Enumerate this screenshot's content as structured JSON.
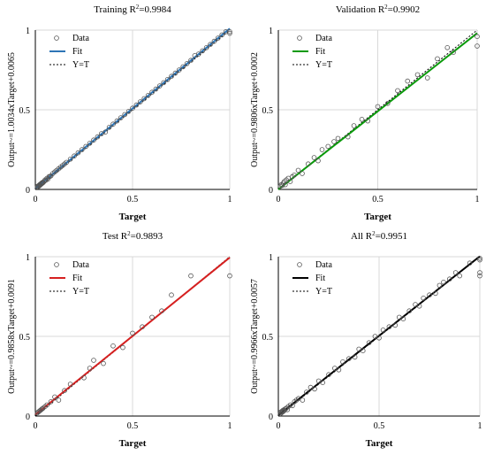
{
  "chart_data": [
    {
      "type": "scatter",
      "title": "Training R",
      "title_sup": "2",
      "title_value": "=0.9984",
      "xlabel": "Target",
      "ylabel": "Output~=1.0034xTarget+0.0065",
      "xlim": [
        0,
        1
      ],
      "ylim": [
        0,
        1
      ],
      "xticks": [
        "0",
        "0.5",
        "1"
      ],
      "yticks": [
        "0",
        "0.5",
        "1"
      ],
      "grid": true,
      "legend_position": "top-left",
      "fit_color": "#2e75b6",
      "fit": {
        "slope": 1.0034,
        "intercept": 0.0065
      },
      "series": [
        {
          "name": "Data",
          "points": [
            [
              0.01,
              0.015
            ],
            [
              0.012,
              0.02
            ],
            [
              0.015,
              0.018
            ],
            [
              0.018,
              0.025
            ],
            [
              0.02,
              0.022
            ],
            [
              0.022,
              0.03
            ],
            [
              0.025,
              0.028
            ],
            [
              0.028,
              0.035
            ],
            [
              0.03,
              0.033
            ],
            [
              0.032,
              0.04
            ],
            [
              0.035,
              0.038
            ],
            [
              0.038,
              0.045
            ],
            [
              0.04,
              0.043
            ],
            [
              0.045,
              0.05
            ],
            [
              0.05,
              0.06
            ],
            [
              0.055,
              0.058
            ],
            [
              0.06,
              0.07
            ],
            [
              0.065,
              0.066
            ],
            [
              0.07,
              0.08
            ],
            [
              0.075,
              0.082
            ],
            [
              0.08,
              0.085
            ],
            [
              0.09,
              0.1
            ],
            [
              0.1,
              0.11
            ],
            [
              0.11,
              0.12
            ],
            [
              0.12,
              0.13
            ],
            [
              0.13,
              0.14
            ],
            [
              0.14,
              0.15
            ],
            [
              0.15,
              0.16
            ],
            [
              0.16,
              0.17
            ],
            [
              0.18,
              0.19
            ],
            [
              0.2,
              0.21
            ],
            [
              0.22,
              0.23
            ],
            [
              0.24,
              0.25
            ],
            [
              0.26,
              0.27
            ],
            [
              0.28,
              0.29
            ],
            [
              0.3,
              0.31
            ],
            [
              0.32,
              0.33
            ],
            [
              0.34,
              0.35
            ],
            [
              0.36,
              0.36
            ],
            [
              0.38,
              0.39
            ],
            [
              0.4,
              0.41
            ],
            [
              0.42,
              0.43
            ],
            [
              0.44,
              0.45
            ],
            [
              0.46,
              0.47
            ],
            [
              0.48,
              0.49
            ],
            [
              0.5,
              0.51
            ],
            [
              0.52,
              0.53
            ],
            [
              0.54,
              0.55
            ],
            [
              0.56,
              0.57
            ],
            [
              0.58,
              0.59
            ],
            [
              0.6,
              0.61
            ],
            [
              0.62,
              0.63
            ],
            [
              0.64,
              0.65
            ],
            [
              0.66,
              0.67
            ],
            [
              0.68,
              0.69
            ],
            [
              0.7,
              0.71
            ],
            [
              0.72,
              0.73
            ],
            [
              0.74,
              0.75
            ],
            [
              0.76,
              0.77
            ],
            [
              0.78,
              0.79
            ],
            [
              0.8,
              0.81
            ],
            [
              0.82,
              0.84
            ],
            [
              0.84,
              0.85
            ],
            [
              0.86,
              0.87
            ],
            [
              0.88,
              0.89
            ],
            [
              0.9,
              0.91
            ],
            [
              0.92,
              0.93
            ],
            [
              0.94,
              0.95
            ],
            [
              0.96,
              0.97
            ],
            [
              0.98,
              0.99
            ],
            [
              1.0,
              0.98
            ],
            [
              1.0,
              0.99
            ]
          ]
        },
        {
          "name": "Fit"
        },
        {
          "name": "Y=T"
        }
      ]
    },
    {
      "type": "scatter",
      "title": "Validation R",
      "title_sup": "2",
      "title_value": "=0.9902",
      "xlabel": "Target",
      "ylabel": "Output~=0.9806xTarget+0.0002",
      "xlim": [
        0,
        1
      ],
      "ylim": [
        0,
        1
      ],
      "xticks": [
        "0",
        "0.5",
        "1"
      ],
      "yticks": [
        "0",
        "0.5",
        "1"
      ],
      "grid": true,
      "legend_position": "top-left",
      "fit_color": "#0a9a0a",
      "fit": {
        "slope": 0.9806,
        "intercept": 0.0002
      },
      "series": [
        {
          "name": "Data",
          "points": [
            [
              0.01,
              0.02
            ],
            [
              0.015,
              0.03
            ],
            [
              0.02,
              0.025
            ],
            [
              0.025,
              0.04
            ],
            [
              0.03,
              0.05
            ],
            [
              0.035,
              0.03
            ],
            [
              0.04,
              0.06
            ],
            [
              0.05,
              0.07
            ],
            [
              0.06,
              0.05
            ],
            [
              0.07,
              0.08
            ],
            [
              0.08,
              0.09
            ],
            [
              0.1,
              0.12
            ],
            [
              0.12,
              0.1
            ],
            [
              0.15,
              0.16
            ],
            [
              0.18,
              0.2
            ],
            [
              0.2,
              0.18
            ],
            [
              0.22,
              0.25
            ],
            [
              0.25,
              0.27
            ],
            [
              0.28,
              0.3
            ],
            [
              0.3,
              0.32
            ],
            [
              0.35,
              0.33
            ],
            [
              0.38,
              0.4
            ],
            [
              0.42,
              0.44
            ],
            [
              0.45,
              0.43
            ],
            [
              0.5,
              0.52
            ],
            [
              0.55,
              0.54
            ],
            [
              0.6,
              0.62
            ],
            [
              0.65,
              0.68
            ],
            [
              0.7,
              0.72
            ],
            [
              0.75,
              0.7
            ],
            [
              0.8,
              0.82
            ],
            [
              0.85,
              0.89
            ],
            [
              0.88,
              0.86
            ],
            [
              1.0,
              0.96
            ],
            [
              1.0,
              0.9
            ]
          ]
        },
        {
          "name": "Fit"
        },
        {
          "name": "Y=T"
        }
      ]
    },
    {
      "type": "scatter",
      "title": "Test R",
      "title_sup": "2",
      "title_value": "=0.9893",
      "xlabel": "Target",
      "ylabel": "Output~=0.9858xTarget+0.0091",
      "xlim": [
        0,
        1
      ],
      "ylim": [
        0,
        1
      ],
      "xticks": [
        "0",
        "0.5",
        "1"
      ],
      "yticks": [
        "0",
        "0.5",
        "1"
      ],
      "grid": true,
      "legend_position": "top-left",
      "fit_color": "#d62020",
      "fit": {
        "slope": 0.9858,
        "intercept": 0.0091
      },
      "series": [
        {
          "name": "Data",
          "points": [
            [
              0.01,
              0.02
            ],
            [
              0.015,
              0.025
            ],
            [
              0.02,
              0.03
            ],
            [
              0.025,
              0.035
            ],
            [
              0.03,
              0.04
            ],
            [
              0.035,
              0.045
            ],
            [
              0.04,
              0.05
            ],
            [
              0.05,
              0.06
            ],
            [
              0.06,
              0.07
            ],
            [
              0.08,
              0.09
            ],
            [
              0.1,
              0.12
            ],
            [
              0.12,
              0.1
            ],
            [
              0.15,
              0.16
            ],
            [
              0.18,
              0.2
            ],
            [
              0.25,
              0.24
            ],
            [
              0.28,
              0.3
            ],
            [
              0.3,
              0.35
            ],
            [
              0.35,
              0.33
            ],
            [
              0.4,
              0.44
            ],
            [
              0.45,
              0.43
            ],
            [
              0.5,
              0.52
            ],
            [
              0.55,
              0.56
            ],
            [
              0.6,
              0.62
            ],
            [
              0.65,
              0.66
            ],
            [
              0.7,
              0.76
            ],
            [
              0.8,
              0.88
            ],
            [
              1.0,
              0.88
            ]
          ]
        },
        {
          "name": "Fit"
        },
        {
          "name": "Y=T"
        }
      ]
    },
    {
      "type": "scatter",
      "title": "All R",
      "title_sup": "2",
      "title_value": "=0.9951",
      "xlabel": "Target",
      "ylabel": "Output~=0.9966xTarget+0.0057",
      "xlim": [
        0,
        1
      ],
      "ylim": [
        0,
        1
      ],
      "xticks": [
        "0",
        "0.5",
        "1"
      ],
      "yticks": [
        "0",
        "0.5",
        "1"
      ],
      "grid": true,
      "legend_position": "top-left",
      "fit_color": "#000000",
      "fit": {
        "slope": 0.9966,
        "intercept": 0.0057
      },
      "series": [
        {
          "name": "Data",
          "points": [
            [
              0.01,
              0.015
            ],
            [
              0.012,
              0.025
            ],
            [
              0.015,
              0.02
            ],
            [
              0.018,
              0.03
            ],
            [
              0.02,
              0.025
            ],
            [
              0.022,
              0.035
            ],
            [
              0.025,
              0.03
            ],
            [
              0.028,
              0.04
            ],
            [
              0.03,
              0.035
            ],
            [
              0.035,
              0.045
            ],
            [
              0.04,
              0.05
            ],
            [
              0.045,
              0.04
            ],
            [
              0.05,
              0.06
            ],
            [
              0.06,
              0.07
            ],
            [
              0.07,
              0.065
            ],
            [
              0.08,
              0.09
            ],
            [
              0.09,
              0.1
            ],
            [
              0.1,
              0.11
            ],
            [
              0.12,
              0.1
            ],
            [
              0.14,
              0.15
            ],
            [
              0.16,
              0.18
            ],
            [
              0.18,
              0.17
            ],
            [
              0.2,
              0.22
            ],
            [
              0.22,
              0.21
            ],
            [
              0.25,
              0.26
            ],
            [
              0.28,
              0.3
            ],
            [
              0.3,
              0.29
            ],
            [
              0.32,
              0.34
            ],
            [
              0.35,
              0.36
            ],
            [
              0.38,
              0.37
            ],
            [
              0.4,
              0.42
            ],
            [
              0.42,
              0.41
            ],
            [
              0.45,
              0.46
            ],
            [
              0.48,
              0.5
            ],
            [
              0.5,
              0.49
            ],
            [
              0.52,
              0.54
            ],
            [
              0.55,
              0.56
            ],
            [
              0.58,
              0.57
            ],
            [
              0.6,
              0.62
            ],
            [
              0.62,
              0.61
            ],
            [
              0.65,
              0.66
            ],
            [
              0.68,
              0.7
            ],
            [
              0.7,
              0.69
            ],
            [
              0.72,
              0.74
            ],
            [
              0.75,
              0.76
            ],
            [
              0.78,
              0.77
            ],
            [
              0.8,
              0.82
            ],
            [
              0.82,
              0.84
            ],
            [
              0.85,
              0.86
            ],
            [
              0.88,
              0.9
            ],
            [
              0.9,
              0.88
            ],
            [
              0.95,
              0.96
            ],
            [
              1.0,
              0.98
            ],
            [
              1.0,
              0.99
            ],
            [
              1.0,
              0.9
            ],
            [
              1.0,
              0.88
            ]
          ]
        },
        {
          "name": "Fit"
        },
        {
          "name": "Y=T"
        }
      ]
    }
  ]
}
